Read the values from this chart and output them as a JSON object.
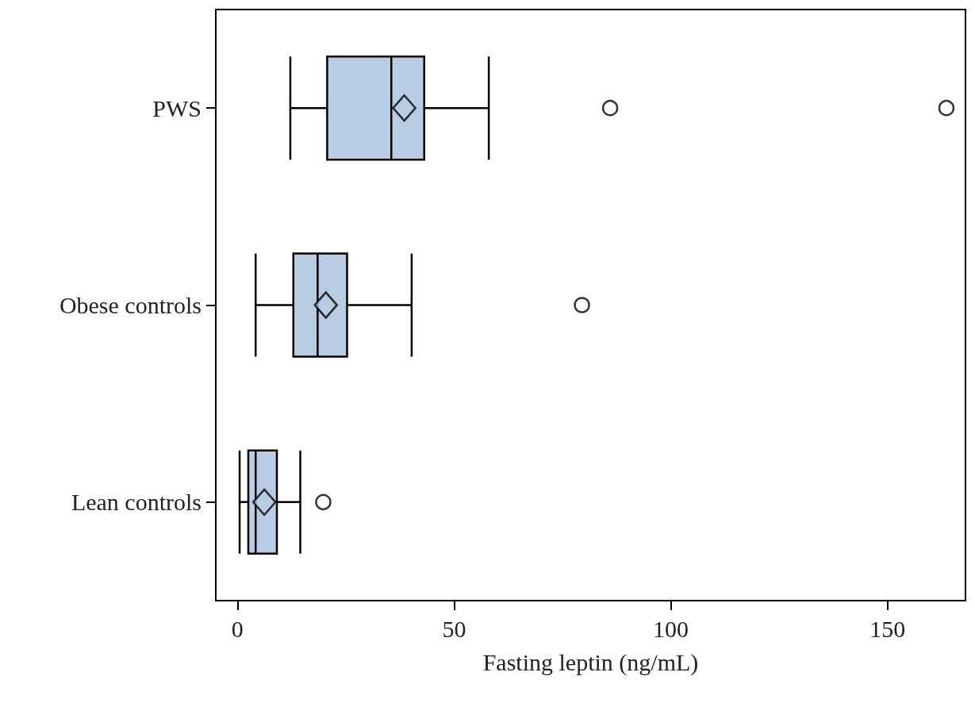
{
  "chart_data": {
    "type": "box",
    "xlabel": "Fasting leptin (ng/mL)",
    "orientation": "horizontal",
    "categories": [
      "PWS",
      "Obese controls",
      "Lean controls"
    ],
    "color": "#b8cce4",
    "boxes": [
      {
        "low": 12.2,
        "q1": 20.7,
        "median": 35.5,
        "q3": 43.1,
        "high": 58,
        "mean": 38.5,
        "outliers": [
          86,
          163.6
        ]
      },
      {
        "low": 4.2,
        "q1": 12.9,
        "median": 18.5,
        "q3": 25.3,
        "high": 40.2,
        "mean": 20.4,
        "outliers": [
          79.5
        ]
      },
      {
        "low": 0.5,
        "q1": 2.5,
        "median": 4.2,
        "q3": 9.1,
        "high": 14.5,
        "mean": 6.2,
        "outliers": [
          19.8
        ]
      }
    ],
    "xlim": [
      -5,
      168
    ],
    "xticks": [
      0,
      50,
      100,
      150
    ]
  }
}
